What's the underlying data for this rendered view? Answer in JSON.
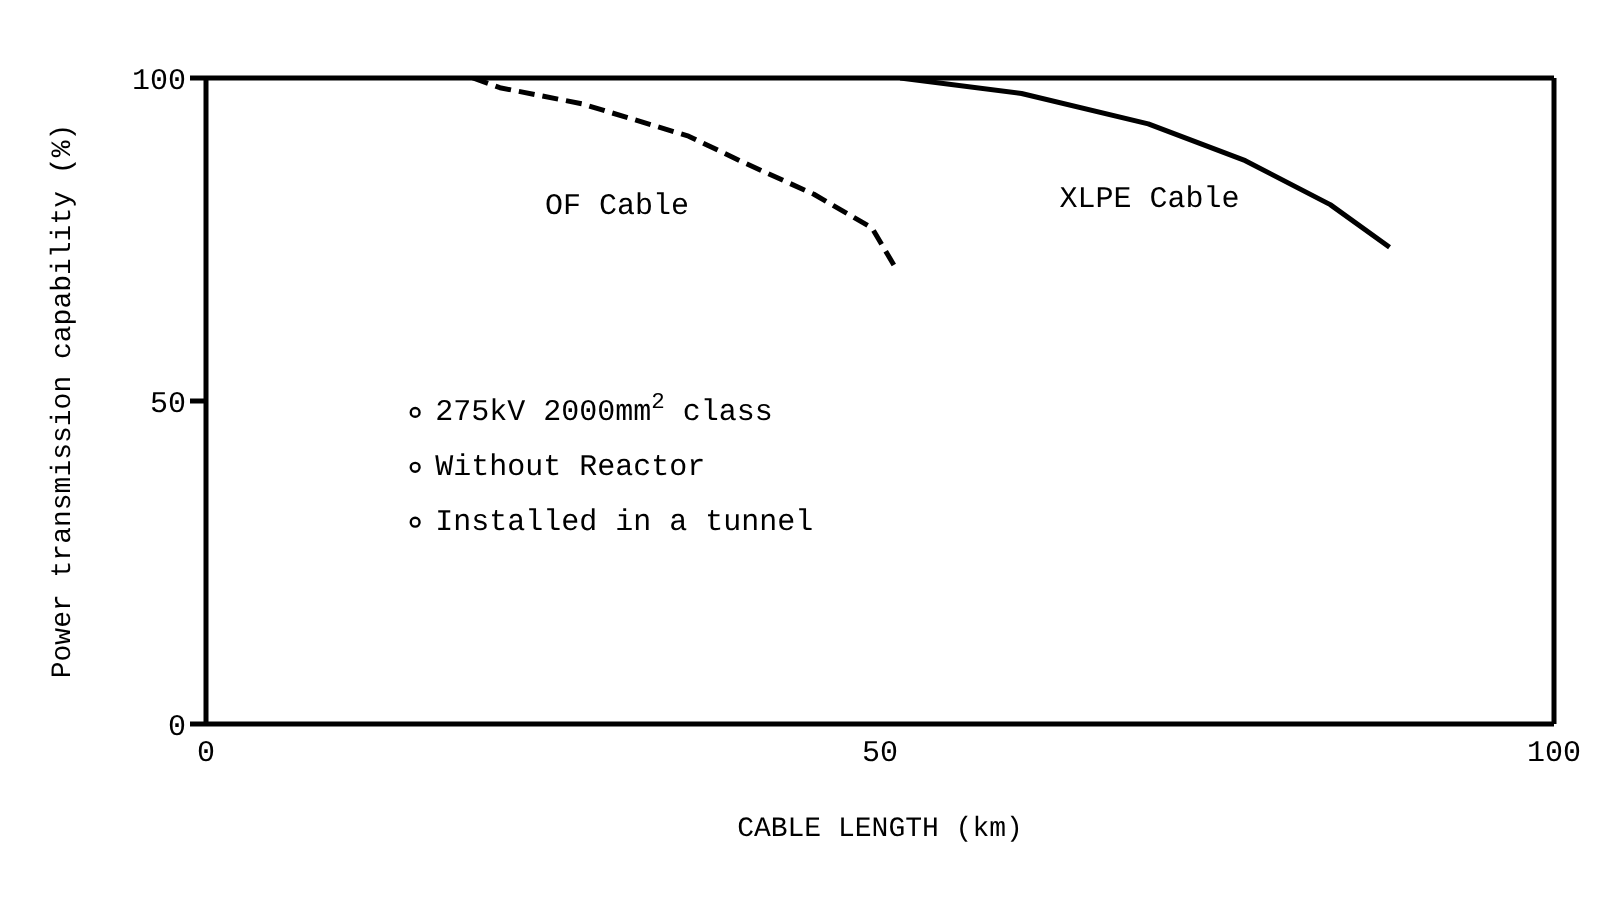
{
  "chart_data": {
    "type": "line",
    "xlabel": "CABLE LENGTH (km)",
    "ylabel": "Power transmission capability (%)",
    "xlim": [
      0,
      100
    ],
    "xticks": [
      0,
      50,
      100
    ],
    "ylim": [
      0,
      100
    ],
    "yticks": [
      0,
      50,
      100
    ],
    "marker": "none",
    "series": [
      {
        "name": "OF Cable",
        "color": "#000000",
        "line_style": "dashed",
        "x": [
          19.8,
          21.8,
          27.9,
          35.8,
          39.8,
          45.1,
          49.4,
          51.1
        ],
        "values": [
          100,
          98.5,
          96,
          91,
          87,
          82,
          76.8,
          70.8
        ]
      },
      {
        "name": "XLPE Cable",
        "color": "#000000",
        "line_style": "solid",
        "x": [
          51.5,
          60.5,
          69.9,
          77.1,
          83.4,
          87.8
        ],
        "values": [
          100,
          97.6,
          92.9,
          87.2,
          80.4,
          73.8
        ]
      }
    ],
    "annotations": [
      {
        "text": "275kV 2000mm$^{2}$ class"
      },
      {
        "text": "Without Reactor"
      },
      {
        "text": "Installed in a tunnel"
      }
    ]
  }
}
